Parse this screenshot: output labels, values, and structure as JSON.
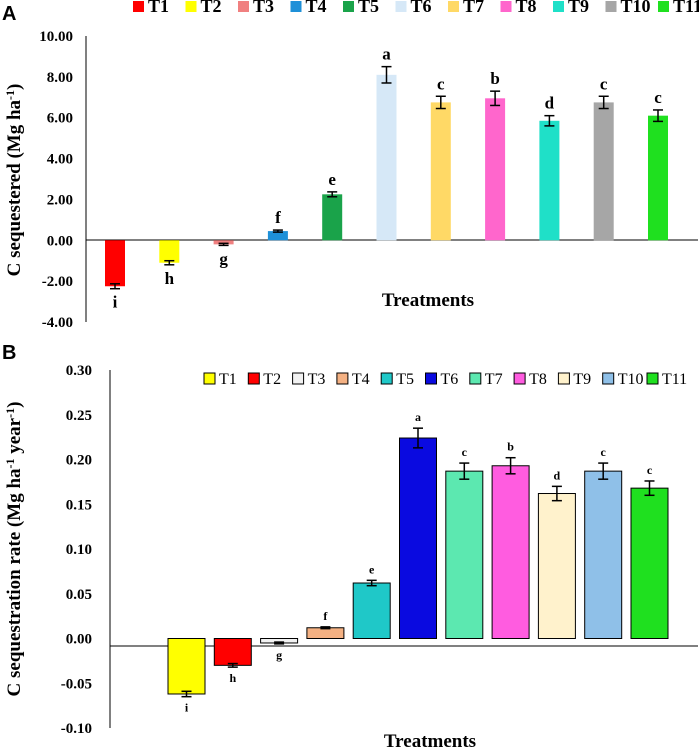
{
  "chart_data": [
    {
      "panel_label": "A",
      "type": "bar",
      "categories": [
        "T1",
        "T2",
        "T3",
        "T4",
        "T5",
        "T6",
        "T7",
        "T8",
        "T9",
        "T10",
        "T11"
      ],
      "values": [
        -2.25,
        -1.1,
        -0.2,
        0.45,
        2.25,
        8.1,
        6.75,
        6.95,
        5.85,
        6.75,
        6.1
      ],
      "errors": [
        0.12,
        0.1,
        0.05,
        0.05,
        0.12,
        0.4,
        0.3,
        0.35,
        0.25,
        0.3,
        0.28
      ],
      "sig_labels": [
        "i",
        "h",
        "g",
        "f",
        "e",
        "a",
        "c",
        "b",
        "d",
        "c",
        "c"
      ],
      "colors": [
        "#ff0000",
        "#ffff00",
        "#f08080",
        "#1e90d8",
        "#1aa34a",
        "#d6e8f7",
        "#ffd966",
        "#ff66cc",
        "#1fe0c8",
        "#a6a6a6",
        "#1fe01f"
      ],
      "xlabel": "Treatments",
      "ylabel": "C sequestered (Mg ha",
      "ylabel_sup": "-1",
      "ylabel_end": ")",
      "ylim": [
        -4,
        10
      ],
      "yticks": [
        "-4.00",
        "-2.00",
        "0.00",
        "2.00",
        "4.00",
        "6.00",
        "8.00",
        "10.00"
      ],
      "legend": [
        "T1",
        "T2",
        "T3",
        "T4",
        "T5",
        "T6",
        "T7",
        "T8",
        "T9",
        "T10",
        "T11"
      ]
    },
    {
      "panel_label": "B",
      "type": "bar",
      "categories": [
        "T1",
        "T2",
        "T3",
        "T4",
        "T5",
        "T6",
        "T7",
        "T8",
        "T9",
        "T10",
        "T11"
      ],
      "values": [
        -0.062,
        -0.03,
        -0.005,
        0.012,
        0.062,
        0.224,
        0.187,
        0.193,
        0.162,
        0.187,
        0.168
      ],
      "errors": [
        0.003,
        0.002,
        0.001,
        0.001,
        0.003,
        0.011,
        0.009,
        0.009,
        0.008,
        0.009,
        0.008
      ],
      "sig_labels": [
        "i",
        "h",
        "g",
        "f",
        "e",
        "a",
        "c",
        "b",
        "d",
        "c",
        "c"
      ],
      "colors": [
        "#ffff00",
        "#ff0000",
        "#f2f2f2",
        "#f4b183",
        "#1fc8c8",
        "#0a0ae0",
        "#5ce8b0",
        "#ff5ce0",
        "#fff2cc",
        "#8fc0e8",
        "#1fe01f"
      ],
      "xlabel": "Treatments",
      "ylabel": "C sequestration rate (Mg ha",
      "ylabel_sup1": "-1",
      "ylabel_mid": " year",
      "ylabel_sup2": "-1",
      "ylabel_end": ")",
      "ylim": [
        -0.1,
        0.3
      ],
      "yticks": [
        "-0.10",
        "-0.05",
        "0.00",
        "0.05",
        "0.10",
        "0.15",
        "0.20",
        "0.25",
        "0.30"
      ],
      "legend": [
        "T1",
        "T2",
        "T3",
        "T4",
        "T5",
        "T6",
        "T7",
        "T8",
        "T9",
        "T10",
        "T11"
      ]
    }
  ]
}
